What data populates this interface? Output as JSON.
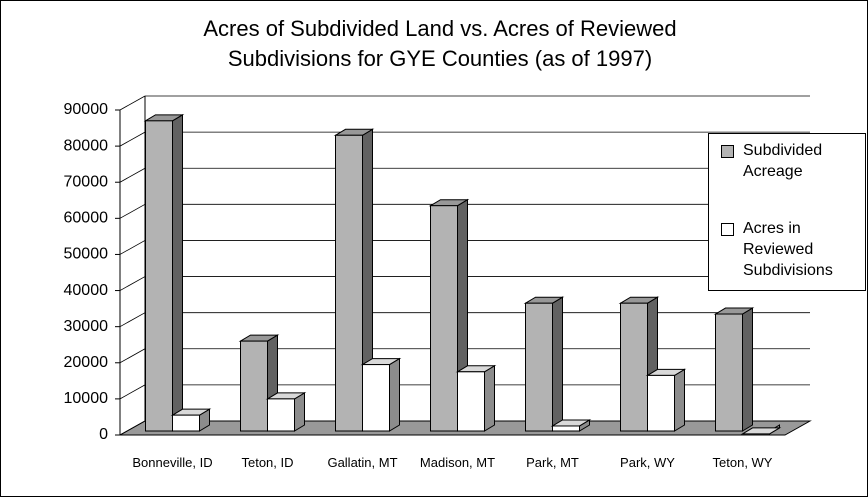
{
  "chart_data": {
    "type": "bar3d",
    "title": "Acres of Subdivided Land vs. Acres of Reviewed Subdivisions for GYE Counties (as of 1997)",
    "categories": [
      "Bonneville, ID",
      "Teton, ID",
      "Gallatin, MT",
      "Madison, MT",
      "Park, MT",
      "Park, WY",
      "Teton, WY"
    ],
    "series": [
      {
        "name": "Subdivided Acreage",
        "color": "#b3b3b3",
        "values": [
          87000,
          26000,
          83000,
          63500,
          36500,
          36500,
          33500
        ]
      },
      {
        "name": "Acres in Reviewed Subdivisions",
        "color": "#ffffff",
        "values": [
          5500,
          10000,
          19500,
          17500,
          2500,
          16500,
          300
        ]
      }
    ],
    "ylim": [
      0,
      90000
    ],
    "yticks": [
      0,
      10000,
      20000,
      30000,
      40000,
      50000,
      60000,
      70000,
      80000,
      90000
    ],
    "grid": true
  }
}
